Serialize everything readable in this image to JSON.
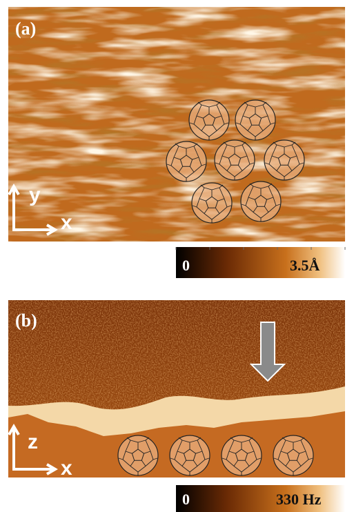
{
  "panels": [
    {
      "label": "(a)",
      "axes": [
        "y",
        "x"
      ],
      "colorbar": {
        "min": "0",
        "max": "3.5Å"
      }
    },
    {
      "label": "(b)",
      "axes": [
        "z",
        "x"
      ],
      "colorbar": {
        "min": "0",
        "max": "330 Hz"
      }
    }
  ]
}
